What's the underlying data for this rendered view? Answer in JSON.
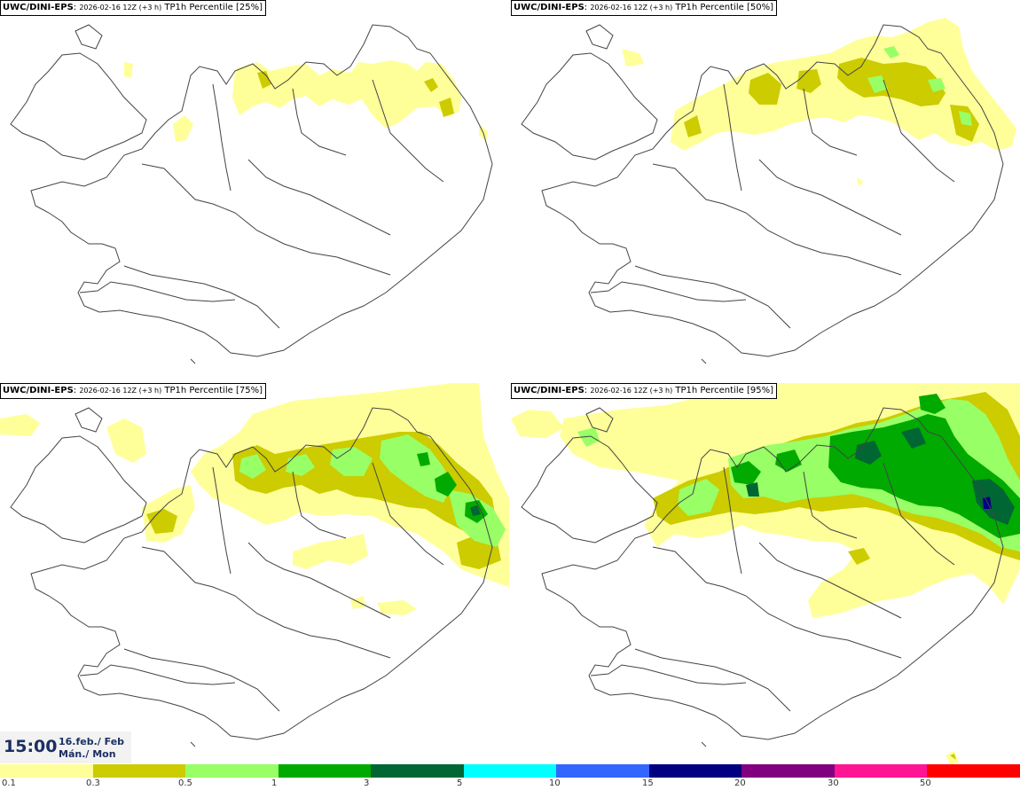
{
  "panels": [
    {
      "model": "UWC/DINI-EPS",
      "run": "2026-02-16 12Z (+3 h)",
      "param": "TP1h Percentile [25%]"
    },
    {
      "model": "UWC/DINI-EPS",
      "run": "2026-02-16 12Z (+3 h)",
      "param": "TP1h Percentile [50%]"
    },
    {
      "model": "UWC/DINI-EPS",
      "run": "2026-02-16 12Z (+3 h)",
      "param": "TP1h Percentile [75%]"
    },
    {
      "model": "UWC/DINI-EPS",
      "run": "2026-02-16 12Z (+3 h)",
      "param": "TP1h Percentile [95%]"
    }
  ],
  "valid_time": {
    "time": "15:00",
    "date_line1": "16.feb./ Feb",
    "date_line2": "Mán./ Mon"
  },
  "legend": {
    "colors": [
      "#ffff99",
      "#cccc00",
      "#99ff66",
      "#00aa00",
      "#006633",
      "#00ffff",
      "#3366ff",
      "#000080",
      "#800080",
      "#ff1493",
      "#ff0000"
    ],
    "labels": [
      "0.1",
      "0.3",
      "0.5",
      "1",
      "3",
      "5",
      "10",
      "15",
      "20",
      "30",
      "50"
    ]
  },
  "colors": {
    "light_yellow": "#ffff99",
    "olive": "#cccc00",
    "light_green": "#99ff66",
    "green": "#00aa00",
    "dark_green": "#006633",
    "coast": "#444444",
    "time_text": "#1b2f63"
  }
}
